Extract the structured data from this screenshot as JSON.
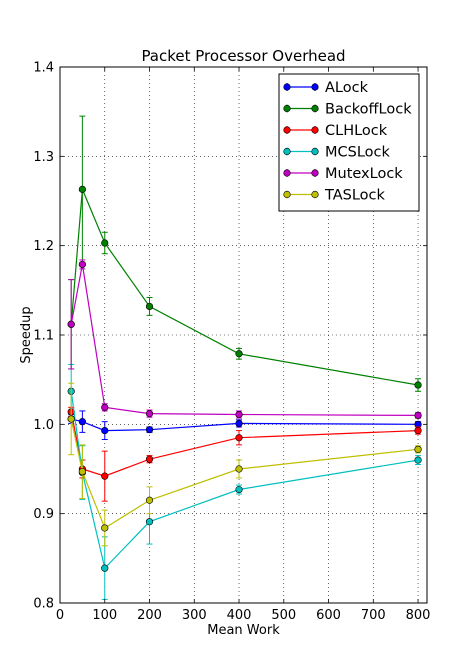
{
  "chart_data": {
    "type": "line",
    "title": "Packet Processor Overhead",
    "xlabel": "Mean Work",
    "ylabel": "Speedup",
    "xlim": [
      0,
      820
    ],
    "ylim": [
      0.8,
      1.4
    ],
    "xticks": [
      0,
      100,
      200,
      300,
      400,
      500,
      600,
      700,
      800
    ],
    "yticks": [
      0.8,
      0.9,
      1.0,
      1.1,
      1.2,
      1.3,
      1.4
    ],
    "xtick_labels": [
      "0",
      "100",
      "200",
      "300",
      "400",
      "500",
      "600",
      "700",
      "800"
    ],
    "ytick_labels": [
      "0.8",
      "0.9",
      "1.0",
      "1.1",
      "1.2",
      "1.3",
      "1.4"
    ],
    "grid": true,
    "legend_position": "top-right",
    "x": [
      25,
      50,
      100,
      200,
      400,
      800
    ],
    "series": [
      {
        "name": "ALock",
        "color": "#0000ff",
        "values": [
          1.006,
          1.003,
          0.993,
          0.994,
          1.001,
          1.0
        ],
        "errors": [
          0.005,
          0.012,
          0.01,
          0.003,
          0.004,
          0.003
        ]
      },
      {
        "name": "BackoffLock",
        "color": "#008000",
        "values": [
          1.112,
          1.263,
          1.203,
          1.132,
          1.079,
          1.044
        ],
        "errors": [
          0.05,
          0.082,
          0.012,
          0.01,
          0.006,
          0.007
        ]
      },
      {
        "name": "CLHLock",
        "color": "#ff0000",
        "values": [
          1.014,
          0.95,
          0.942,
          0.961,
          0.985,
          0.993
        ],
        "errors": [
          0.005,
          0.01,
          0.028,
          0.004,
          0.008,
          0.004
        ]
      },
      {
        "name": "MCSLock",
        "color": "#00bfbf",
        "values": [
          1.037,
          0.946,
          0.839,
          0.891,
          0.927,
          0.96
        ],
        "errors": [
          0.03,
          0.03,
          0.035,
          0.025,
          0.005,
          0.005
        ]
      },
      {
        "name": "MutexLock",
        "color": "#bf00bf",
        "values": [
          1.112,
          1.179,
          1.019,
          1.012,
          1.011,
          1.01
        ],
        "errors": [
          0.05,
          0.005,
          0.004,
          0.004,
          0.004,
          0.003
        ]
      },
      {
        "name": "TASLock",
        "color": "#bfbf00",
        "values": [
          1.006,
          0.947,
          0.884,
          0.915,
          0.95,
          0.972
        ],
        "errors": [
          0.04,
          0.03,
          0.02,
          0.015,
          0.01,
          0.004
        ]
      }
    ]
  }
}
